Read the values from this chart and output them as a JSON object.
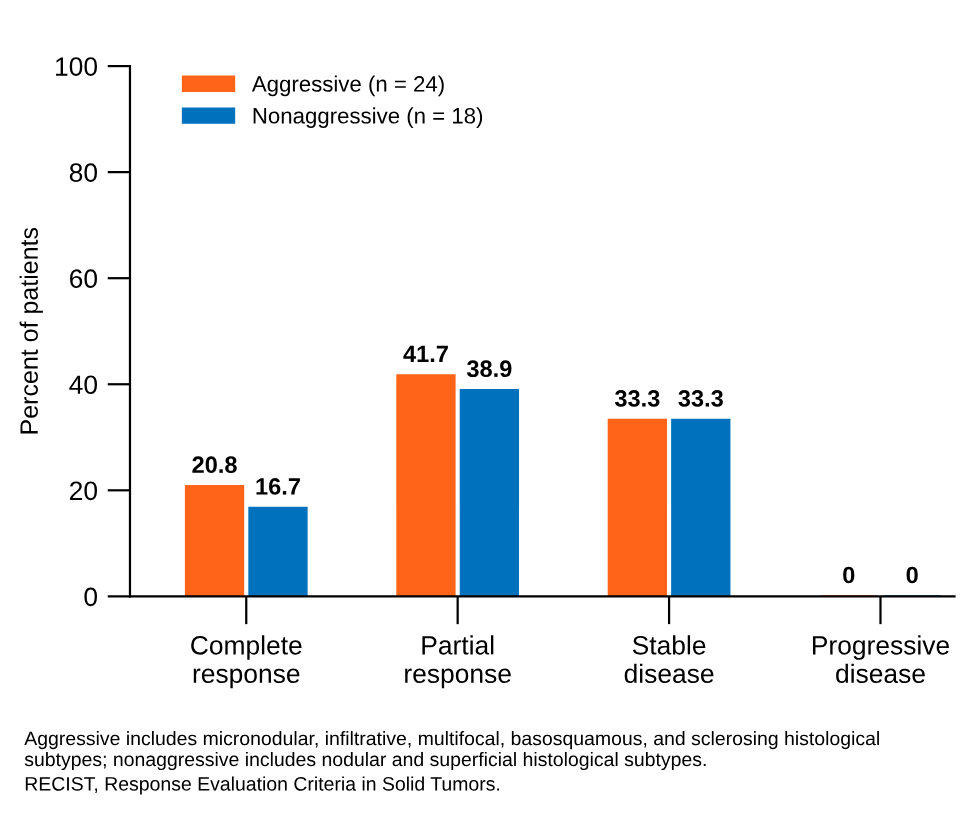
{
  "chart_data": {
    "type": "bar",
    "ylabel": "Percent of patients",
    "categories": [
      "Complete\nresponse",
      "Partial\nresponse",
      "Stable\ndisease",
      "Progressive\ndisease"
    ],
    "series": [
      {
        "name": "Aggressive (n = 24)",
        "color": "#ff6418",
        "values": [
          20.8,
          41.7,
          33.3,
          0
        ]
      },
      {
        "name": "Nonaggressive (n = 18)",
        "color": "#0071bd",
        "values": [
          16.7,
          38.9,
          33.3,
          0
        ]
      }
    ],
    "ylim": [
      0,
      100
    ],
    "yticks": [
      0,
      20,
      40,
      60,
      80,
      100
    ],
    "data_labels": true,
    "legend": "top left",
    "grid": false,
    "annotations": [
      "Aggressive includes micronodular, infiltrative, multifocal, basosquamous, and sclerosing histological subtypes; nonaggressive includes nodular and superficial histological subtypes.",
      "RECIST, Response Evaluation Criteria in Solid Tumors."
    ]
  }
}
